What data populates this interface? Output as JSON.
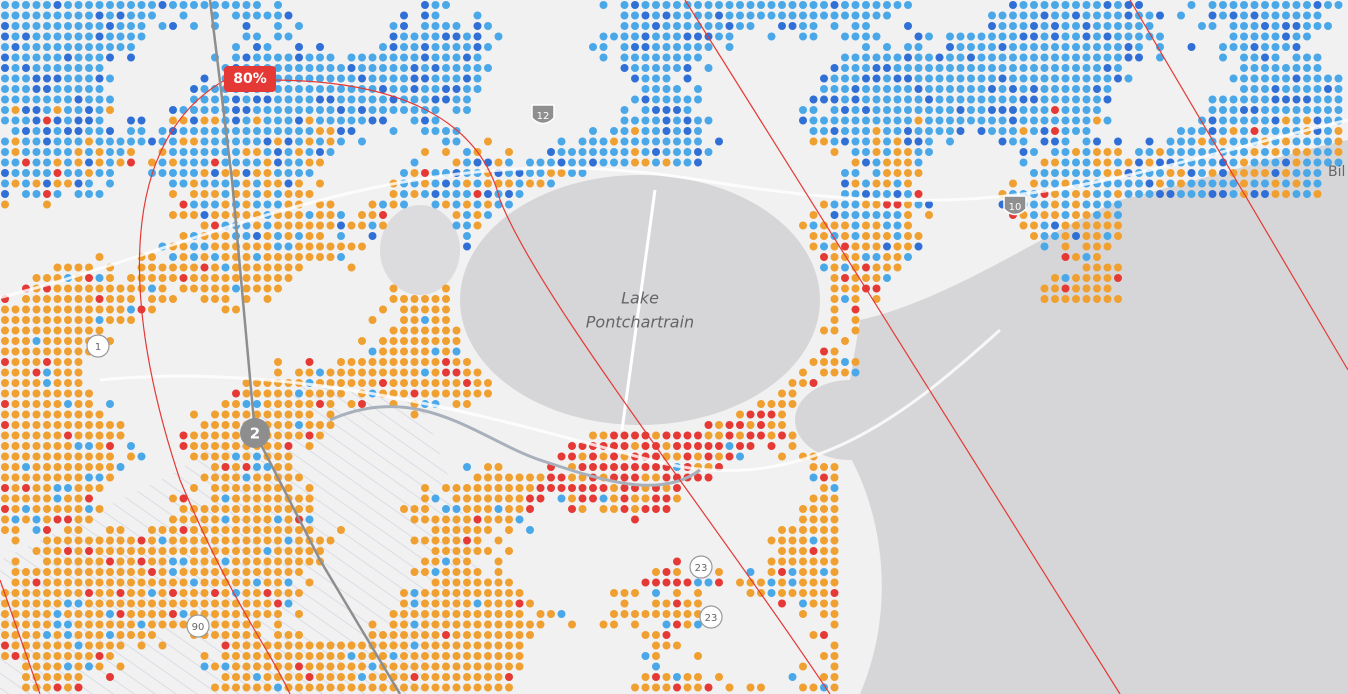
{
  "labels": {
    "probability": "80%",
    "lake": [
      "Lake",
      "Pontchartrain"
    ],
    "city": "Bil"
  },
  "markers": {
    "storm_point": "2"
  },
  "route_shields": [
    {
      "label": "12"
    },
    {
      "label": "10"
    },
    {
      "label": "1"
    },
    {
      "label": "90"
    },
    {
      "label": "23"
    },
    {
      "label": "23"
    }
  ]
}
